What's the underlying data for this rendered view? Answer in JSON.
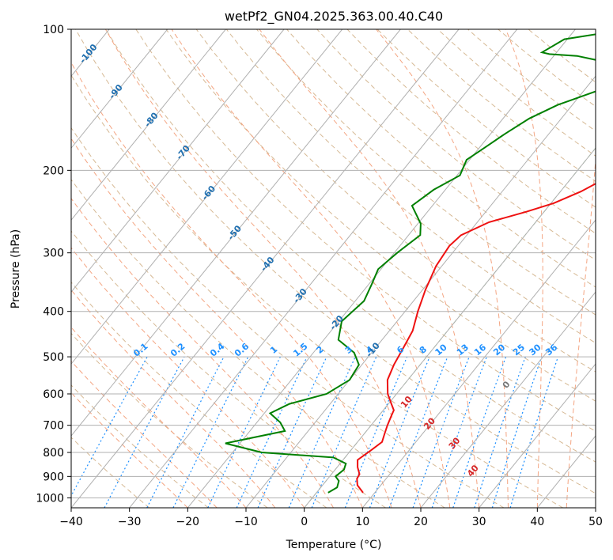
{
  "chart_data": {
    "type": "line",
    "title": "wetPf2_GN04.2025.363.00.40.C40",
    "xlabel": "Temperature (°C)",
    "ylabel": "Pressure (hPa)",
    "xlim": [
      -40,
      50
    ],
    "ylim": [
      1050,
      100
    ],
    "y_scale": "log",
    "grid": true,
    "x_ticks": [
      -40,
      -30,
      -20,
      -10,
      0,
      10,
      20,
      30,
      40,
      50
    ],
    "x_tick_labels": [
      "−40",
      "−30",
      "−20",
      "−10",
      "0",
      "10",
      "20",
      "30",
      "40",
      "50"
    ],
    "y_ticks": [
      1000,
      900,
      800,
      700,
      600,
      500,
      400,
      300,
      200,
      100
    ],
    "y_tick_labels": [
      "1000",
      "900",
      "800",
      "700",
      "600",
      "500",
      "400",
      "300",
      "200",
      "100"
    ],
    "series": [
      {
        "color": "#ee1111",
        "points": [
          [
            8.0,
            975
          ],
          [
            6.0,
            940
          ],
          [
            5.0,
            910
          ],
          [
            4.8,
            890
          ],
          [
            3.5,
            860
          ],
          [
            2.5,
            830
          ],
          [
            3.5,
            790
          ],
          [
            4.2,
            760
          ],
          [
            3.5,
            730
          ],
          [
            2.8,
            700
          ],
          [
            2.2,
            670
          ],
          [
            1.8,
            650
          ],
          [
            0.5,
            630
          ],
          [
            -1.5,
            600
          ],
          [
            -3.5,
            560
          ],
          [
            -4.5,
            520
          ],
          [
            -5.2,
            480
          ],
          [
            -6.0,
            440
          ],
          [
            -7.8,
            400
          ],
          [
            -9.5,
            360
          ],
          [
            -11.0,
            320
          ],
          [
            -11.5,
            290
          ],
          [
            -11.0,
            275
          ],
          [
            -8.0,
            258
          ],
          [
            -3.0,
            245
          ],
          [
            0.5,
            235
          ],
          [
            3.5,
            222
          ],
          [
            6.5,
            205
          ],
          [
            9.0,
            190
          ],
          [
            11.5,
            175
          ],
          [
            13.0,
            160
          ],
          [
            15.0,
            148
          ],
          [
            17.5,
            137
          ],
          [
            20.0,
            127
          ],
          [
            22.5,
            118
          ],
          [
            25.0,
            111
          ],
          [
            27.5,
            107
          ],
          [
            29.5,
            104
          ],
          [
            30.5,
            102
          ],
          [
            30.5,
            100
          ]
        ]
      },
      {
        "color": "#008000",
        "points": [
          [
            2.0,
            975
          ],
          [
            2.8,
            950
          ],
          [
            2.2,
            920
          ],
          [
            1.0,
            900
          ],
          [
            1.5,
            870
          ],
          [
            1.0,
            845
          ],
          [
            -2.0,
            820
          ],
          [
            -15.0,
            800
          ],
          [
            -22.5,
            765
          ],
          [
            -14.0,
            720
          ],
          [
            -16.0,
            690
          ],
          [
            -19.0,
            660
          ],
          [
            -17.0,
            630
          ],
          [
            -12.0,
            600
          ],
          [
            -10.0,
            560
          ],
          [
            -10.5,
            520
          ],
          [
            -13.0,
            490
          ],
          [
            -17.5,
            460
          ],
          [
            -19.5,
            420
          ],
          [
            -18.5,
            380
          ],
          [
            -19.5,
            350
          ],
          [
            -20.5,
            325
          ],
          [
            -19.5,
            300
          ],
          [
            -18.0,
            275
          ],
          [
            -19.5,
            260
          ],
          [
            -23.5,
            238
          ],
          [
            -22.0,
            220
          ],
          [
            -19.5,
            205
          ],
          [
            -20.5,
            190
          ],
          [
            -19.0,
            178
          ],
          [
            -17.5,
            167
          ],
          [
            -15.5,
            155
          ],
          [
            -12.5,
            145
          ],
          [
            -7.5,
            135
          ],
          [
            -6.0,
            128
          ],
          [
            -7.5,
            122
          ],
          [
            -11.0,
            117
          ],
          [
            -16.0,
            114
          ],
          [
            -21.0,
            113
          ],
          [
            -22.5,
            112
          ],
          [
            -20.5,
            105
          ],
          [
            -13.0,
            101
          ],
          [
            -8.0,
            100
          ]
        ]
      }
    ],
    "dry_adiabat_labels": [
      "-100",
      "-90",
      "-80",
      "-70",
      "-60",
      "-50",
      "-40",
      "-30",
      "-20",
      "-10"
    ],
    "moist_adiabat_labels": [
      "0",
      "10",
      "20",
      "30",
      "40"
    ],
    "mixing_ratio_labels": [
      "0.1",
      "0.2",
      "0.4",
      "0.6",
      "1",
      "1.5",
      "2",
      "3",
      "4",
      "6",
      "8",
      "10",
      "13",
      "16",
      "20",
      "25",
      "30",
      "36"
    ]
  }
}
